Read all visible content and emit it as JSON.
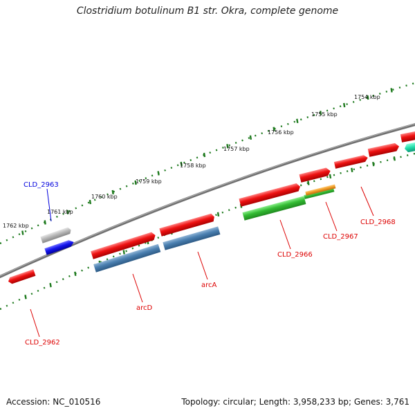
{
  "title": "Clostridium botulinum B1 str. Okra, complete genome",
  "footer": {
    "accession": "Accession: NC_010516",
    "summary": "Topology: circular; Length: 3,958,233 bp; Genes: 3,761"
  },
  "ticks": [
    {
      "label": "1762 kbp"
    },
    {
      "label": "1761 kbp"
    },
    {
      "label": "1760 kbp"
    },
    {
      "label": "1759 kbp"
    },
    {
      "label": "1758 kbp"
    },
    {
      "label": "1757 kbp"
    },
    {
      "label": "1756 kbp"
    },
    {
      "label": "1755 kbp"
    },
    {
      "label": "1754 kbp"
    }
  ],
  "genes": [
    {
      "name": "CLD_2963",
      "color": "#0000dd"
    },
    {
      "name": "CLD_2962",
      "color": "#dd0000"
    },
    {
      "name": "arcD",
      "color": "#dd0000"
    },
    {
      "name": "arcA",
      "color": "#dd0000"
    },
    {
      "name": "CLD_2966",
      "color": "#dd0000"
    },
    {
      "name": "CLD_2967",
      "color": "#dd0000"
    },
    {
      "name": "CLD_2968",
      "color": "#dd0000"
    }
  ],
  "colors": {
    "backbone": "#707070",
    "tick_track": "#1e7a1e",
    "cds_forward": "#ee1111",
    "cds_reverse": "#4a7fb0",
    "gene_blue": "#1515ee",
    "gene_grey": "#b8b8b8",
    "green": "#33bb33",
    "orange": "#ee9922",
    "teal": "#22ddaa"
  }
}
